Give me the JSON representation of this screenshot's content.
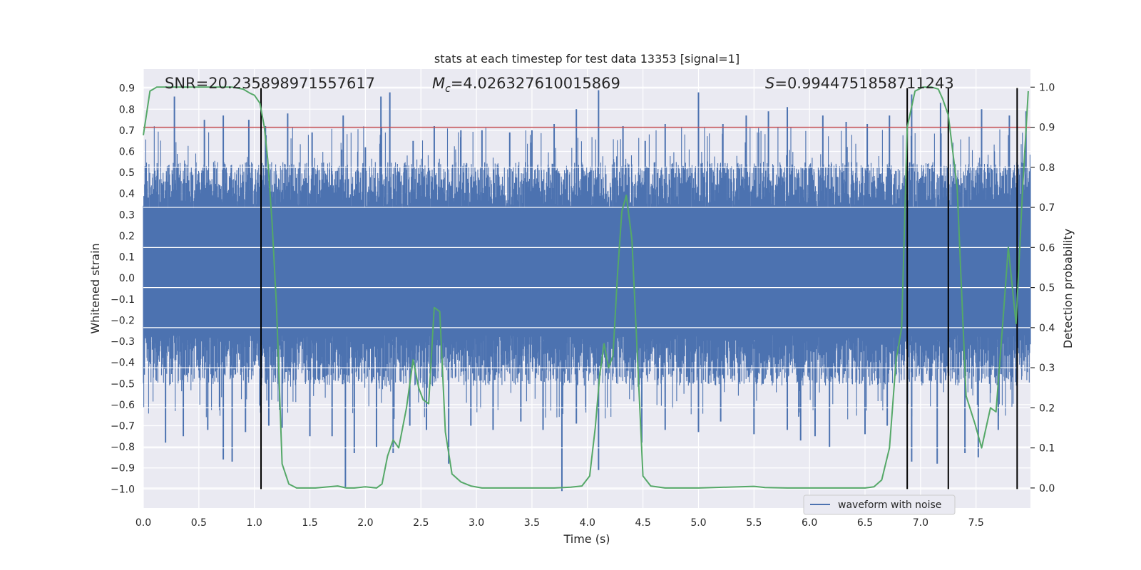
{
  "chart_data": {
    "type": "line",
    "title": "stats at each timestep for test data 13353 [signal=1]",
    "xlabel": "Time (s)",
    "ylabel_left": "Whitened strain",
    "ylabel_right": "Detection probability",
    "xlim": [
      0,
      7.99
    ],
    "ylim_left": [
      -1.09,
      0.99
    ],
    "ylim_right": [
      -0.05,
      1.045
    ],
    "xticks": [
      0.0,
      0.5,
      1.0,
      1.5,
      2.0,
      2.5,
      3.0,
      3.5,
      4.0,
      4.5,
      5.0,
      5.5,
      6.0,
      6.5,
      7.0,
      7.5
    ],
    "xtick_labels": [
      "0.0",
      "0.5",
      "1.0",
      "1.5",
      "2.0",
      "2.5",
      "3.0",
      "3.5",
      "4.0",
      "4.5",
      "5.0",
      "5.5",
      "6.0",
      "6.5",
      "7.0",
      "7.5"
    ],
    "yticks_left": [
      0.9,
      0.8,
      0.7,
      0.6,
      0.5,
      0.4,
      0.3,
      0.2,
      0.1,
      0.0,
      -0.1,
      -0.2,
      -0.3,
      -0.4,
      -0.5,
      -0.6,
      -0.7,
      -0.8,
      -0.9,
      -1.0
    ],
    "ytick_labels_left": [
      "0.9",
      "0.8",
      "0.7",
      "0.6",
      "0.5",
      "0.4",
      "0.3",
      "0.2",
      "0.1",
      "0.0",
      "−0.1",
      "−0.2",
      "−0.3",
      "−0.4",
      "−0.5",
      "−0.6",
      "−0.7",
      "−0.8",
      "−0.9",
      "−1.0"
    ],
    "yticks_right": [
      1.0,
      0.9,
      0.8,
      0.7,
      0.6,
      0.5,
      0.4,
      0.3,
      0.2,
      0.1,
      0.0
    ],
    "ytick_labels_right": [
      "1.0",
      "0.9",
      "0.8",
      "0.7",
      "0.6",
      "0.5",
      "0.4",
      "0.3",
      "0.2",
      "0.1",
      "0.0"
    ],
    "grid": true,
    "legend": {
      "entries": [
        "waveform with noise"
      ],
      "placement": "lower-right"
    },
    "annotations": {
      "snr": "SNR=20.235898971557617",
      "mc_symbol": "M",
      "mc_subscript": "c",
      "mc_value": "=4.026327610015869",
      "s_symbol": "S",
      "s_value": "=0.9944751858711243"
    },
    "threshold_line": {
      "axis": "right",
      "value": 0.9,
      "color": "#c44e52"
    },
    "vertical_lines": {
      "x": [
        1.06,
        6.88,
        7.25,
        7.87
      ],
      "y_range_left": [
        -1.0,
        0.9
      ],
      "color": "#000000"
    },
    "waveform": {
      "name": "waveform with noise",
      "color": "#4c72b0",
      "core_band": [
        -0.27,
        0.33
      ],
      "positive_spikes": [
        [
          0.28,
          0.86
        ],
        [
          0.55,
          0.75
        ],
        [
          0.72,
          0.77
        ],
        [
          0.95,
          0.75
        ],
        [
          1.1,
          0.72
        ],
        [
          1.3,
          0.78
        ],
        [
          1.52,
          0.69
        ],
        [
          1.8,
          0.77
        ],
        [
          2.0,
          0.62
        ],
        [
          2.14,
          0.86
        ],
        [
          2.22,
          0.88
        ],
        [
          2.43,
          0.65
        ],
        [
          2.62,
          0.72
        ],
        [
          2.86,
          0.7
        ],
        [
          3.05,
          0.7
        ],
        [
          3.3,
          0.69
        ],
        [
          3.5,
          0.7
        ],
        [
          3.7,
          0.73
        ],
        [
          3.9,
          0.8
        ],
        [
          4.1,
          0.89
        ],
        [
          4.32,
          0.72
        ],
        [
          4.52,
          0.65
        ],
        [
          4.7,
          0.73
        ],
        [
          5.0,
          0.88
        ],
        [
          5.22,
          0.73
        ],
        [
          5.43,
          0.77
        ],
        [
          5.63,
          0.79
        ],
        [
          5.8,
          0.81
        ],
        [
          6.12,
          0.77
        ],
        [
          6.33,
          0.74
        ],
        [
          6.52,
          0.73
        ],
        [
          6.72,
          0.77
        ],
        [
          6.92,
          0.87
        ],
        [
          7.18,
          0.83
        ],
        [
          7.55,
          0.8
        ],
        [
          7.8,
          0.77
        ],
        [
          7.95,
          0.79
        ]
      ],
      "negative_spikes": [
        [
          0.2,
          -0.78
        ],
        [
          0.36,
          -0.75
        ],
        [
          0.58,
          -0.72
        ],
        [
          0.72,
          -0.86
        ],
        [
          0.8,
          -0.87
        ],
        [
          0.92,
          -0.73
        ],
        [
          1.13,
          -0.7
        ],
        [
          1.25,
          -0.71
        ],
        [
          1.5,
          -0.75
        ],
        [
          1.7,
          -0.75
        ],
        [
          1.82,
          -0.99
        ],
        [
          1.9,
          -0.83
        ],
        [
          2.1,
          -0.8
        ],
        [
          2.25,
          -0.83
        ],
        [
          2.4,
          -0.7
        ],
        [
          2.55,
          -0.72
        ],
        [
          2.75,
          -0.88
        ],
        [
          2.95,
          -0.7
        ],
        [
          3.15,
          -0.72
        ],
        [
          3.4,
          -0.68
        ],
        [
          3.6,
          -0.72
        ],
        [
          3.77,
          -1.01
        ],
        [
          3.9,
          -0.69
        ],
        [
          4.1,
          -0.91
        ],
        [
          4.49,
          -0.78
        ],
        [
          4.7,
          -0.72
        ],
        [
          5.0,
          -0.73
        ],
        [
          5.2,
          -0.68
        ],
        [
          5.5,
          -0.74
        ],
        [
          5.8,
          -0.72
        ],
        [
          5.92,
          -0.77
        ],
        [
          6.05,
          -0.75
        ],
        [
          6.18,
          -0.8
        ],
        [
          6.5,
          -0.74
        ],
        [
          6.7,
          -0.7
        ],
        [
          6.92,
          -0.87
        ],
        [
          7.15,
          -0.88
        ],
        [
          7.4,
          -0.83
        ],
        [
          7.52,
          -0.85
        ],
        [
          7.7,
          -0.72
        ]
      ]
    },
    "probability": {
      "name": "Detection probability",
      "color": "#55a868",
      "x": [
        0.0,
        0.06,
        0.12,
        0.3,
        0.5,
        0.8,
        0.9,
        0.96,
        1.0,
        1.05,
        1.09,
        1.12,
        1.16,
        1.2,
        1.25,
        1.31,
        1.38,
        1.55,
        1.75,
        1.83,
        1.9,
        2.0,
        2.1,
        2.15,
        2.2,
        2.25,
        2.3,
        2.37,
        2.43,
        2.48,
        2.52,
        2.57,
        2.62,
        2.67,
        2.72,
        2.78,
        2.86,
        2.95,
        3.05,
        3.15,
        3.3,
        3.5,
        3.7,
        3.85,
        3.95,
        4.02,
        4.07,
        4.11,
        4.15,
        4.19,
        4.23,
        4.27,
        4.31,
        4.35,
        4.4,
        4.45,
        4.5,
        4.57,
        4.7,
        5.0,
        5.5,
        5.6,
        5.8,
        6.2,
        6.5,
        6.58,
        6.65,
        6.72,
        6.78,
        6.83,
        6.88,
        6.95,
        7.02,
        7.1,
        7.16,
        7.2,
        7.25,
        7.33,
        7.41,
        7.49,
        7.55,
        7.63,
        7.68,
        7.74,
        7.79,
        7.86,
        7.92,
        7.97
      ],
      "values": [
        0.88,
        0.99,
        1.0,
        1.0,
        1.0,
        1.0,
        0.995,
        0.985,
        0.98,
        0.96,
        0.9,
        0.82,
        0.66,
        0.45,
        0.06,
        0.01,
        0.0,
        0.0,
        0.005,
        0.0,
        0.0,
        0.003,
        0.0,
        0.01,
        0.08,
        0.12,
        0.1,
        0.2,
        0.32,
        0.25,
        0.22,
        0.21,
        0.45,
        0.44,
        0.14,
        0.035,
        0.015,
        0.005,
        0.0,
        0.0,
        0.0,
        0.0,
        0.0,
        0.002,
        0.005,
        0.03,
        0.15,
        0.28,
        0.36,
        0.3,
        0.33,
        0.53,
        0.69,
        0.73,
        0.62,
        0.33,
        0.03,
        0.005,
        0.0,
        0.0,
        0.004,
        0.001,
        0.0,
        0.0,
        0.0,
        0.003,
        0.02,
        0.1,
        0.32,
        0.4,
        0.9,
        0.99,
        1.0,
        1.0,
        0.995,
        0.97,
        0.93,
        0.75,
        0.23,
        0.16,
        0.1,
        0.2,
        0.19,
        0.41,
        0.6,
        0.41,
        0.75,
        0.99
      ]
    }
  }
}
